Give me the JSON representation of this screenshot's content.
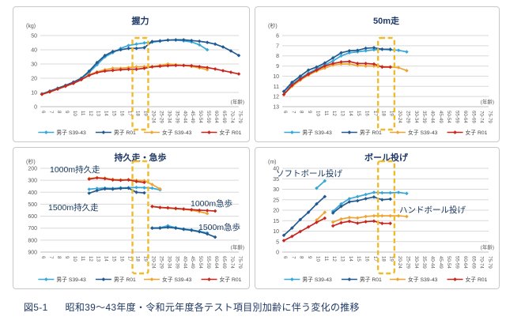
{
  "caption": {
    "fig_label": "図5-1",
    "text": "昭和39〜43年度・令和元年度各テスト項目別加齢に伴う変化の推移"
  },
  "age_axis_label": "(年齢)",
  "colors": {
    "mens_s39": "#36a7d9",
    "mens_r01": "#22598f",
    "womens_s39": "#efa42f",
    "womens_r01": "#c9251f",
    "highlight": "#eebc2a",
    "grid": "#d9d9d9",
    "axis": "#bfbfbf",
    "tick_text": "#595959",
    "annotation": "#17375e",
    "title": "#1f3864",
    "legend_text": "#404040"
  },
  "legend": [
    {
      "key": "mens_s39",
      "label": "男子 S39-43"
    },
    {
      "key": "mens_r01",
      "label": "男子 R01"
    },
    {
      "key": "womens_s39",
      "label": "女子 S39-43"
    },
    {
      "key": "womens_r01",
      "label": "女子 R01"
    }
  ],
  "categories": [
    "6",
    "7",
    "8",
    "9",
    "10",
    "11",
    "12",
    "13",
    "14",
    "15",
    "16",
    "17",
    "18",
    "19",
    "20-24",
    "25-29",
    "30-34",
    "35-39",
    "40-44",
    "45-49",
    "50-54",
    "55-59",
    "60-64",
    "65-69",
    "70-74",
    "75-79"
  ],
  "chart_data": [
    {
      "type": "line",
      "title": "握力",
      "unit": "(kg)",
      "ylabel": "kg",
      "y_min": 0,
      "y_max": 50,
      "inverted": false,
      "y_ticks": [
        0,
        10,
        20,
        30,
        40,
        50
      ],
      "highlight_categories": [
        "18",
        "19"
      ],
      "annotations": [],
      "lines": [
        {
          "id": "grip-mens-s39",
          "color": "mens_s39",
          "start": 0,
          "values": [
            9,
            11,
            13,
            15,
            17,
            20,
            24,
            29.5,
            35,
            38,
            41,
            43,
            44,
            44.8,
            45.3,
            46,
            46.8,
            46.8,
            46.3,
            45.5,
            43.5,
            40
          ]
        },
        {
          "id": "grip-mens-r01",
          "color": "mens_r01",
          "start": 0,
          "values": [
            8.8,
            10.8,
            12.8,
            15,
            17.3,
            20,
            25,
            31,
            36,
            38.8,
            40,
            41,
            41,
            41.5,
            45.8,
            46.3,
            46.8,
            47,
            47,
            46.5,
            46,
            45.2,
            44,
            42,
            39.2,
            36
          ]
        },
        {
          "id": "grip-womens-s39",
          "color": "womens_s39",
          "start": 0,
          "values": [
            8.7,
            10.4,
            12.4,
            14.4,
            16.4,
            19,
            22.5,
            24.5,
            26,
            27,
            27,
            27.5,
            28,
            28.2,
            28.2,
            29,
            30,
            29.5,
            29,
            28.3,
            27.3,
            26
          ]
        },
        {
          "id": "grip-womens-r01",
          "color": "womens_r01",
          "start": 0,
          "values": [
            8.7,
            10.4,
            12.4,
            14.4,
            16.4,
            19,
            22,
            24,
            25,
            25.5,
            26,
            26.3,
            26.3,
            27,
            28,
            28.4,
            28.8,
            29,
            29,
            28.8,
            28.2,
            27.5,
            26.5,
            25.3,
            24.2,
            23
          ]
        }
      ]
    },
    {
      "type": "line",
      "title": "50m走",
      "unit": "(秒)",
      "ylabel": "秒",
      "y_min": 6,
      "y_max": 13,
      "inverted": true,
      "y_ticks": [
        6,
        7,
        8,
        9,
        10,
        11,
        12,
        13
      ],
      "highlight_categories": [
        "18",
        "19"
      ],
      "annotations": [],
      "lines": [
        {
          "id": "run-mens-s39",
          "color": "mens_s39",
          "start": 0,
          "values": [
            11.5,
            10.8,
            10.2,
            9.7,
            9.3,
            8.9,
            8.5,
            8.0,
            7.7,
            7.6,
            7.5,
            7.4,
            7.35,
            7.4,
            7.45,
            7.6
          ]
        },
        {
          "id": "run-mens-r01",
          "color": "mens_r01",
          "start": 0,
          "values": [
            11.5,
            10.6,
            10.0,
            9.4,
            9.1,
            8.7,
            8.2,
            7.7,
            7.5,
            7.45,
            7.25,
            7.2,
            7.35,
            7.35
          ]
        },
        {
          "id": "run-womens-s39",
          "color": "womens_s39",
          "start": 0,
          "values": [
            11.8,
            11.0,
            10.4,
            9.9,
            9.5,
            9.2,
            8.9,
            8.8,
            8.8,
            8.95,
            9.0,
            9.0,
            9.05,
            9.1,
            9.15,
            9.45
          ]
        },
        {
          "id": "run-womens-r01",
          "color": "womens_r01",
          "start": 0,
          "values": [
            11.8,
            10.9,
            10.3,
            9.8,
            9.4,
            9.0,
            8.75,
            8.6,
            8.55,
            8.75,
            8.75,
            8.8,
            9.1,
            9.1
          ]
        }
      ]
    },
    {
      "type": "line",
      "title": "持久走・急歩",
      "unit": "(秒)",
      "ylabel": "秒",
      "y_min": 200,
      "y_max": 900,
      "inverted": true,
      "y_ticks": [
        200,
        300,
        400,
        500,
        600,
        700,
        800,
        900
      ],
      "highlight_categories": [
        "18",
        "19"
      ],
      "annotations": [
        {
          "text": "1000m持久走",
          "x": 46,
          "y": 31
        },
        {
          "text": "1500m持久走",
          "x": 44,
          "y": 79
        },
        {
          "text": "1000m急歩",
          "x": 224,
          "y": 74
        },
        {
          "text": "1500m急歩",
          "x": 234,
          "y": 104
        }
      ],
      "lines": [
        {
          "id": "endur1500-mens-s39",
          "color": "mens_s39",
          "start": 6,
          "values": [
            375,
            368,
            365,
            368,
            363,
            362,
            360,
            362,
            366,
            380
          ]
        },
        {
          "id": "endur1500-mens-r01",
          "color": "mens_r01",
          "start": 6,
          "values": [
            408,
            385,
            372,
            374,
            368,
            366,
            400,
            405
          ]
        },
        {
          "id": "endur1000-womens-s39",
          "color": "womens_s39",
          "start": 6,
          "values": [
            285,
            278,
            282,
            292,
            296,
            294,
            300,
            303,
            335,
            372
          ]
        },
        {
          "id": "endur1000-womens-r01",
          "color": "womens_r01",
          "start": 6,
          "values": [
            290,
            280,
            286,
            297,
            300,
            297,
            310,
            318
          ]
        },
        {
          "id": "walk1500-mens-s39",
          "color": "mens_s39",
          "start": 14,
          "values": [
            698,
            696,
            680,
            696,
            706,
            714,
            726,
            740
          ]
        },
        {
          "id": "walk1500-mens-r01",
          "color": "mens_r01",
          "start": 14,
          "values": [
            700,
            700,
            693,
            700,
            710,
            718,
            730,
            748,
            775
          ]
        },
        {
          "id": "walk1000-womens-s39",
          "color": "womens_s39",
          "start": 14,
          "values": [
            520,
            528,
            532,
            538,
            543,
            550,
            562,
            578
          ]
        },
        {
          "id": "walk1000-womens-r01",
          "color": "womens_r01",
          "start": 14,
          "values": [
            518,
            527,
            530,
            535,
            540,
            545,
            550,
            553,
            557
          ]
        }
      ]
    },
    {
      "type": "line",
      "title": "ボール投げ",
      "unit": "(m)",
      "ylabel": "m",
      "y_min": 0,
      "y_max": 40,
      "inverted": false,
      "y_ticks": [
        0,
        5,
        10,
        15,
        20,
        25,
        30,
        35,
        40
      ],
      "highlight_categories": [
        "18",
        "19"
      ],
      "annotations": [
        {
          "text": "ソフトボール投げ",
          "x": 26,
          "y": 36
        },
        {
          "text": "ハンドボール投げ",
          "x": 182,
          "y": 82
        }
      ],
      "lines": [
        {
          "id": "softball-mens-s39",
          "color": "mens_s39",
          "start": 4,
          "values": [
            30.5,
            34
          ]
        },
        {
          "id": "softball-mens-r01",
          "color": "mens_r01",
          "start": 0,
          "values": [
            8,
            11.5,
            15.5,
            19,
            23,
            26.5
          ]
        },
        {
          "id": "softball-womens-s39",
          "color": "womens_s39",
          "start": 4,
          "values": [
            15.3,
            19
          ]
        },
        {
          "id": "softball-womens-r01",
          "color": "womens_r01",
          "start": 0,
          "values": [
            5.5,
            7.5,
            9.8,
            12,
            14.2,
            16.2
          ]
        },
        {
          "id": "handball-mens-s39",
          "color": "mens_s39",
          "start": 6,
          "values": [
            19.5,
            23,
            25.5,
            26.5,
            27.5,
            28.5,
            28.3,
            28.3,
            28.5,
            28
          ]
        },
        {
          "id": "handball-mens-r01",
          "color": "mens_r01",
          "start": 6,
          "values": [
            18.7,
            21.8,
            24,
            24.5,
            25.5,
            26.3,
            25,
            25.3
          ]
        },
        {
          "id": "handball-womens-s39",
          "color": "womens_s39",
          "start": 6,
          "values": [
            14.3,
            15.8,
            16.5,
            16.3,
            17,
            17.3,
            17.3,
            17.3,
            17.3,
            17
          ]
        },
        {
          "id": "handball-womens-r01",
          "color": "womens_r01",
          "start": 6,
          "values": [
            12.5,
            14,
            14.7,
            13.8,
            14.5,
            14.8,
            13.7,
            13.7
          ]
        }
      ]
    }
  ]
}
